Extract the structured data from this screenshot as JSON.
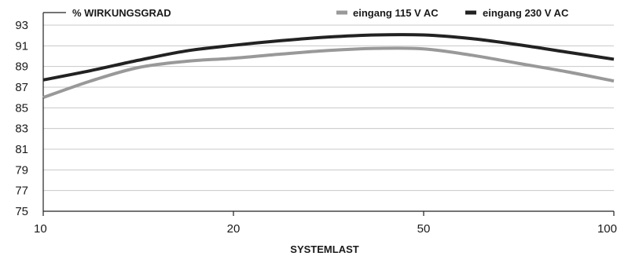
{
  "chart_data": {
    "type": "line",
    "title": "% WIRKUNGSGRAD",
    "xlabel": "SYSTEMLAST",
    "ylabel": "% WIRKUNGSGRAD",
    "x_ticks": [
      "10",
      "20",
      "50",
      "100"
    ],
    "y_ticks": [
      75,
      77,
      79,
      81,
      83,
      85,
      87,
      89,
      91,
      93
    ],
    "ylim": [
      75,
      93
    ],
    "grid": true,
    "legend_position": "top-right",
    "series": [
      {
        "name": "eingang 115 V AC",
        "color": "#999999",
        "points": [
          {
            "x": 0,
            "y": 86.0
          },
          {
            "x": 0.25,
            "y": 87.6
          },
          {
            "x": 0.5,
            "y": 88.9
          },
          {
            "x": 0.75,
            "y": 89.5
          },
          {
            "x": 1,
            "y": 89.8
          },
          {
            "x": 1.25,
            "y": 90.2
          },
          {
            "x": 1.5,
            "y": 90.55
          },
          {
            "x": 1.75,
            "y": 90.75
          },
          {
            "x": 2,
            "y": 90.7
          },
          {
            "x": 2.25,
            "y": 90.1
          },
          {
            "x": 2.5,
            "y": 89.3
          },
          {
            "x": 2.75,
            "y": 88.5
          },
          {
            "x": 3,
            "y": 87.6
          }
        ]
      },
      {
        "name": "eingang 230 V AC",
        "color": "#222222",
        "points": [
          {
            "x": 0,
            "y": 87.7
          },
          {
            "x": 0.25,
            "y": 88.6
          },
          {
            "x": 0.5,
            "y": 89.6
          },
          {
            "x": 0.75,
            "y": 90.5
          },
          {
            "x": 1,
            "y": 91.05
          },
          {
            "x": 1.25,
            "y": 91.5
          },
          {
            "x": 1.5,
            "y": 91.85
          },
          {
            "x": 1.75,
            "y": 92.05
          },
          {
            "x": 2,
            "y": 92.05
          },
          {
            "x": 2.25,
            "y": 91.7
          },
          {
            "x": 2.5,
            "y": 91.1
          },
          {
            "x": 2.75,
            "y": 90.4
          },
          {
            "x": 3,
            "y": 89.7
          }
        ]
      }
    ]
  }
}
